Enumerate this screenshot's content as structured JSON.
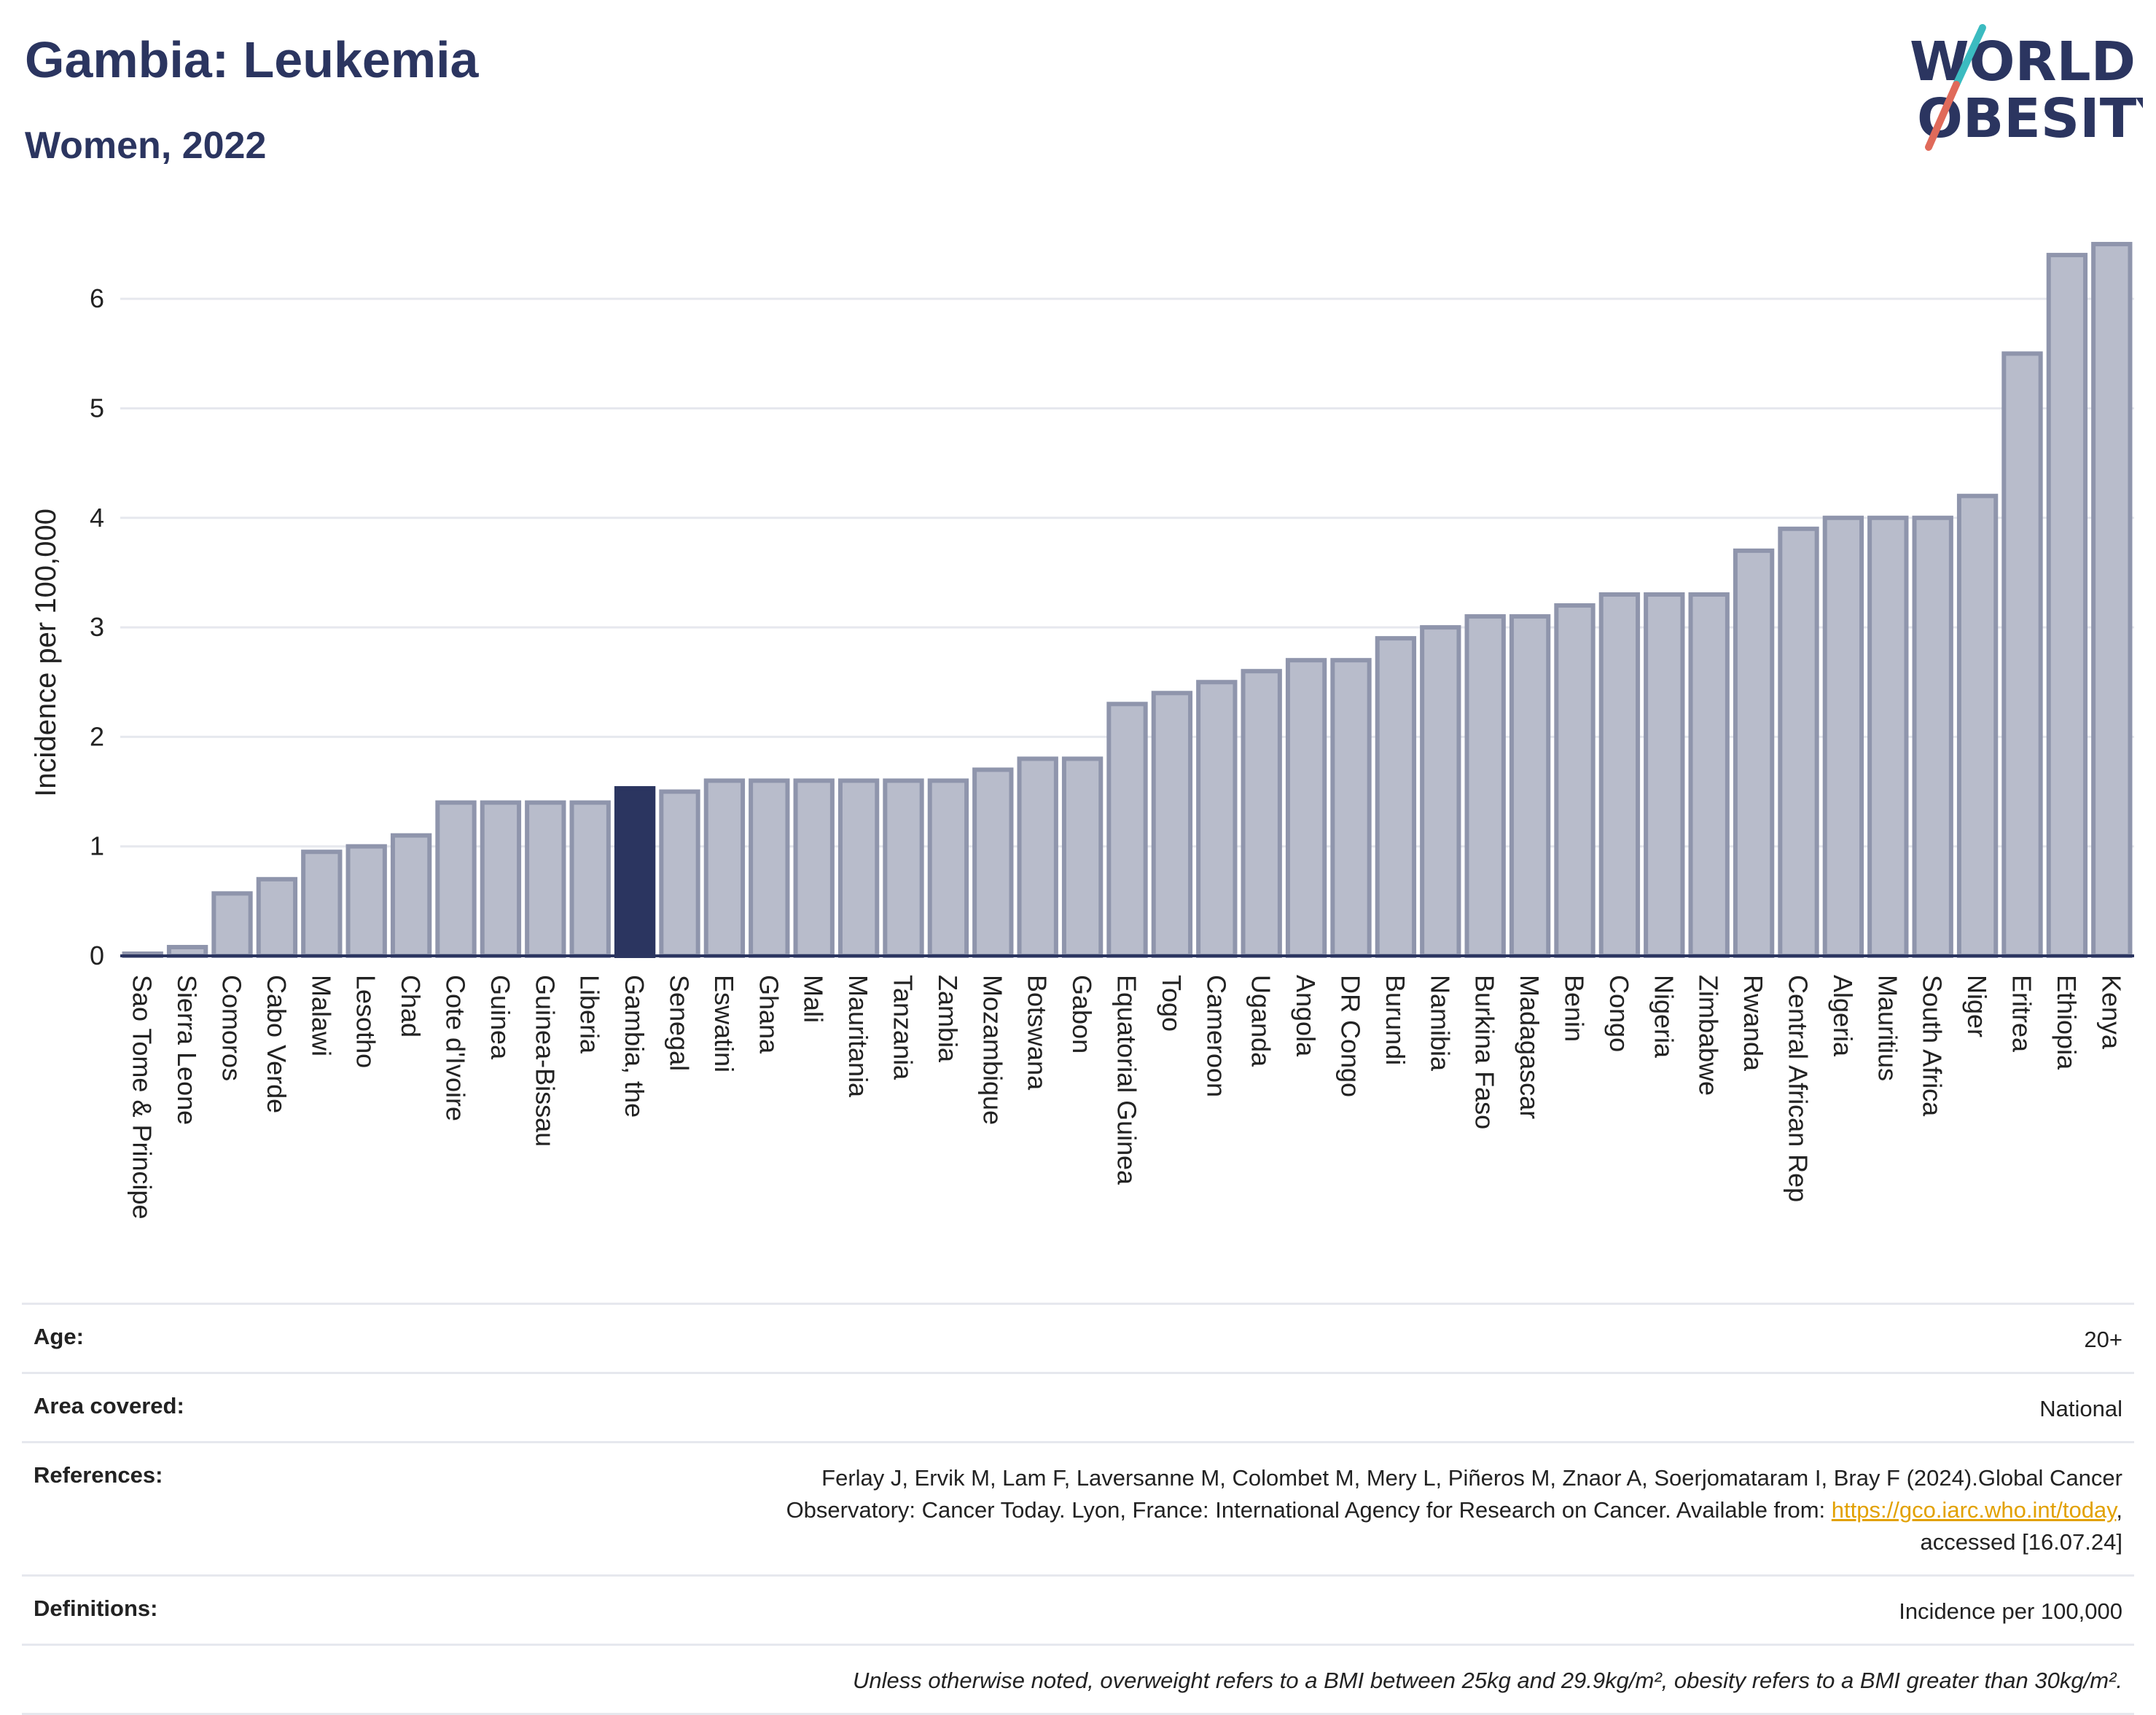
{
  "header": {
    "title": "Gambia: Leukemia",
    "subtitle": "Women, 2022",
    "logo_line1": "WORLD",
    "logo_line2": "OBESITY"
  },
  "chart_data": {
    "type": "bar",
    "ylabel": "Incidence per 100,000",
    "ylim": [
      0,
      6.6
    ],
    "yticks": [
      0,
      1,
      2,
      3,
      4,
      5,
      6
    ],
    "grid": true,
    "highlight": "Gambia, the",
    "colors": {
      "bar": "#b8bccb",
      "bar_edge": "#8f95ac",
      "highlight": "#2b3560"
    },
    "categories": [
      "Sao Tome & Principe",
      "Sierra Leone",
      "Comoros",
      "Cabo Verde",
      "Malawi",
      "Lesotho",
      "Chad",
      "Cote d'Ivoire",
      "Guinea",
      "Guinea-Bissau",
      "Liberia",
      "Gambia, the",
      "Senegal",
      "Eswatini",
      "Ghana",
      "Mali",
      "Mauritania",
      "Tanzania",
      "Zambia",
      "Mozambique",
      "Botswana",
      "Gabon",
      "Equatorial Guinea",
      "Togo",
      "Cameroon",
      "Uganda",
      "Angola",
      "DR Congo",
      "Burundi",
      "Namibia",
      "Burkina Faso",
      "Madagascar",
      "Benin",
      "Congo",
      "Nigeria",
      "Zimbabwe",
      "Rwanda",
      "Central African Rep",
      "Algeria",
      "Mauritius",
      "South Africa",
      "Niger",
      "Eritrea",
      "Ethiopia",
      "Kenya"
    ],
    "values": [
      0.02,
      0.08,
      0.57,
      0.7,
      0.95,
      1.0,
      1.1,
      1.4,
      1.4,
      1.4,
      1.4,
      1.53,
      1.5,
      1.6,
      1.6,
      1.6,
      1.6,
      1.6,
      1.6,
      1.7,
      1.8,
      1.8,
      2.3,
      2.4,
      2.5,
      2.6,
      2.7,
      2.7,
      2.9,
      3.0,
      3.1,
      3.1,
      3.2,
      3.3,
      3.3,
      3.3,
      3.7,
      3.9,
      4.0,
      4.0,
      4.0,
      4.2,
      5.5,
      6.4,
      6.5
    ]
  },
  "meta": {
    "age_label": "Age:",
    "age_value": "20+",
    "area_label": "Area covered:",
    "area_value": "National",
    "references_label": "References:",
    "references_line1": "Ferlay J, Ervik M, Lam F, Laversanne M, Colombet M, Mery L, Piñeros M, Znaor A, Soerjomataram I, Bray F (2024).Global Cancer",
    "references_line2_pre": "Observatory: Cancer Today. Lyon, France: International Agency for Research on Cancer. Available from: ",
    "references_link": "https://gco.iarc.who.int/today",
    "references_line2_post": ",",
    "references_line3": "accessed [16.07.24]",
    "definitions_label": "Definitions:",
    "definitions_value": "Incidence per 100,000",
    "note": "Unless otherwise noted, overweight refers to a BMI between 25kg and 29.9kg/m², obesity refers to a BMI greater than 30kg/m²."
  }
}
